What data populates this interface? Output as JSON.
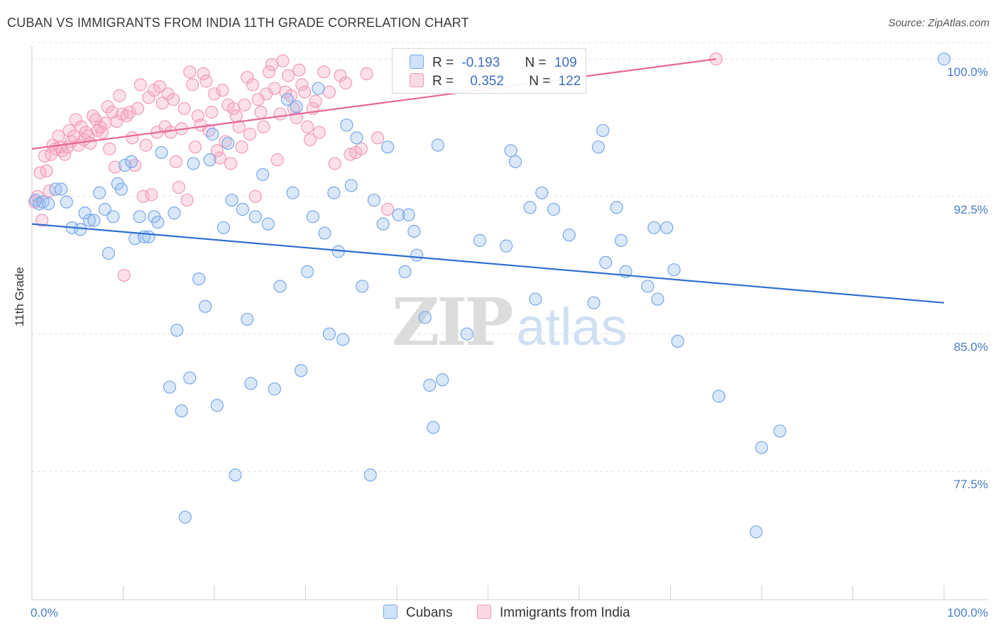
{
  "title": "CUBAN VS IMMIGRANTS FROM INDIA 11TH GRADE CORRELATION CHART",
  "source": "Source: ZipAtlas.com",
  "watermark": {
    "zip": "ZIP",
    "atlas": "atlas"
  },
  "legend": {
    "rows": [
      {
        "r_label": "R =",
        "r_value": "-0.193",
        "n_label": "N =",
        "n_value": "109",
        "color": "#7aa8e8"
      },
      {
        "r_label": "R =",
        "r_value": "0.352",
        "n_label": "N =",
        "n_value": "122",
        "color": "#f29bb7"
      }
    ],
    "bottom": [
      "Cubans",
      "Immigrants from India"
    ]
  },
  "colors": {
    "cubans_fill": "rgba(150,190,240,0.35)",
    "cubans_stroke": "#7aa8e8",
    "cubans_line": "#2f6fcf",
    "india_fill": "rgba(245,170,195,0.35)",
    "india_stroke": "#f29bb7",
    "india_line": "#e8679a",
    "tick_text": "#4a7cc8",
    "grid": "#e3e3e3"
  },
  "chart_data": {
    "type": "scatter",
    "title": "CUBAN VS IMMIGRANTS FROM INDIA 11TH GRADE CORRELATION CHART",
    "xlabel": "",
    "ylabel": "11th Grade",
    "xlim": [
      0,
      100
    ],
    "ylim": [
      70.5,
      100.9
    ],
    "x_tick_labels": [
      "0.0%",
      "100.0%"
    ],
    "y_ticks": [
      {
        "value": 100,
        "label": "100.0%"
      },
      {
        "value": 92.5,
        "label": "92.5%"
      },
      {
        "value": 85,
        "label": "85.0%"
      },
      {
        "value": 77.5,
        "label": "77.5%"
      }
    ],
    "grid": "horizontal dashed",
    "series": [
      {
        "name": "Cubans",
        "r": -0.193,
        "n": 109,
        "trend": {
          "x": [
            0,
            100
          ],
          "y": [
            91.0,
            86.7
          ]
        },
        "points": [
          [
            0.4,
            92.3
          ],
          [
            0.8,
            92.1
          ],
          [
            1.2,
            92.2
          ],
          [
            1.8,
            92.1
          ],
          [
            2.6,
            92.9
          ],
          [
            3.2,
            92.9
          ],
          [
            3.8,
            92.2
          ],
          [
            4.4,
            90.8
          ],
          [
            5.3,
            90.7
          ],
          [
            5.8,
            91.6
          ],
          [
            6.3,
            91.2
          ],
          [
            6.8,
            91.2
          ],
          [
            7.4,
            92.7
          ],
          [
            8.0,
            91.8
          ],
          [
            8.4,
            89.4
          ],
          [
            8.9,
            91.4
          ],
          [
            9.4,
            93.2
          ],
          [
            9.8,
            92.9
          ],
          [
            10.2,
            94.2
          ],
          [
            10.9,
            94.4
          ],
          [
            11.3,
            90.2
          ],
          [
            11.8,
            91.4
          ],
          [
            12.3,
            90.3
          ],
          [
            12.8,
            90.3
          ],
          [
            13.4,
            91.4
          ],
          [
            13.8,
            91.1
          ],
          [
            14.2,
            94.9
          ],
          [
            15.1,
            82.1
          ],
          [
            15.6,
            91.6
          ],
          [
            15.9,
            85.2
          ],
          [
            16.4,
            80.8
          ],
          [
            16.8,
            75.0
          ],
          [
            17.3,
            82.6
          ],
          [
            17.7,
            94.3
          ],
          [
            18.3,
            88.0
          ],
          [
            19.0,
            86.5
          ],
          [
            19.5,
            94.5
          ],
          [
            19.8,
            95.9
          ],
          [
            20.3,
            81.1
          ],
          [
            21.0,
            90.8
          ],
          [
            21.5,
            95.4
          ],
          [
            21.9,
            92.3
          ],
          [
            22.3,
            77.3
          ],
          [
            23.1,
            91.8
          ],
          [
            23.6,
            85.8
          ],
          [
            24.0,
            82.3
          ],
          [
            24.5,
            91.4
          ],
          [
            25.3,
            93.7
          ],
          [
            25.9,
            91.0
          ],
          [
            26.6,
            82.0
          ],
          [
            27.2,
            87.6
          ],
          [
            28.0,
            97.8
          ],
          [
            28.6,
            92.7
          ],
          [
            29.0,
            97.4
          ],
          [
            29.5,
            83.0
          ],
          [
            30.2,
            88.4
          ],
          [
            30.8,
            91.4
          ],
          [
            31.4,
            98.4
          ],
          [
            32.1,
            90.5
          ],
          [
            32.6,
            85.0
          ],
          [
            33.1,
            92.7
          ],
          [
            33.6,
            89.5
          ],
          [
            34.1,
            84.7
          ],
          [
            34.5,
            96.4
          ],
          [
            35.0,
            93.1
          ],
          [
            35.6,
            95.7
          ],
          [
            36.2,
            87.6
          ],
          [
            37.1,
            77.3
          ],
          [
            37.5,
            92.3
          ],
          [
            38.5,
            91.0
          ],
          [
            39.0,
            95.2
          ],
          [
            40.2,
            91.5
          ],
          [
            40.9,
            88.4
          ],
          [
            41.3,
            91.5
          ],
          [
            41.9,
            90.6
          ],
          [
            42.2,
            89.3
          ],
          [
            43.1,
            85.9
          ],
          [
            43.6,
            82.2
          ],
          [
            44.0,
            79.9
          ],
          [
            44.5,
            95.3
          ],
          [
            45.0,
            82.5
          ],
          [
            47.7,
            85.0
          ],
          [
            49.1,
            90.1
          ],
          [
            52.0,
            89.8
          ],
          [
            52.5,
            95.0
          ],
          [
            53.0,
            94.4
          ],
          [
            54.6,
            91.9
          ],
          [
            55.2,
            86.9
          ],
          [
            55.9,
            92.7
          ],
          [
            57.2,
            91.8
          ],
          [
            58.9,
            90.4
          ],
          [
            61.6,
            86.7
          ],
          [
            62.1,
            95.2
          ],
          [
            62.6,
            96.1
          ],
          [
            62.9,
            88.9
          ],
          [
            64.1,
            91.9
          ],
          [
            64.6,
            90.1
          ],
          [
            65.1,
            88.4
          ],
          [
            67.5,
            87.6
          ],
          [
            68.2,
            90.8
          ],
          [
            68.6,
            86.9
          ],
          [
            69.6,
            90.8
          ],
          [
            70.4,
            88.5
          ],
          [
            70.8,
            84.6
          ],
          [
            75.3,
            81.6
          ],
          [
            79.4,
            74.2
          ],
          [
            80.0,
            78.8
          ],
          [
            82.0,
            79.7
          ],
          [
            100.0,
            100.0
          ]
        ]
      },
      {
        "name": "Immigrants from India",
        "r": 0.352,
        "n": 122,
        "trend": {
          "x": [
            0,
            75
          ],
          "y": [
            95.1,
            100.0
          ]
        },
        "points": [
          [
            0.3,
            92.2
          ],
          [
            0.6,
            92.5
          ],
          [
            0.9,
            93.8
          ],
          [
            1.1,
            91.2
          ],
          [
            1.4,
            94.7
          ],
          [
            1.6,
            93.9
          ],
          [
            1.9,
            92.8
          ],
          [
            2.1,
            94.8
          ],
          [
            2.3,
            95.3
          ],
          [
            2.6,
            95.1
          ],
          [
            2.9,
            95.8
          ],
          [
            3.1,
            95.2
          ],
          [
            3.3,
            95.0
          ],
          [
            3.6,
            94.8
          ],
          [
            3.9,
            95.2
          ],
          [
            4.1,
            96.1
          ],
          [
            4.3,
            95.5
          ],
          [
            4.6,
            95.8
          ],
          [
            4.8,
            96.7
          ],
          [
            5.1,
            95.3
          ],
          [
            5.4,
            96.3
          ],
          [
            5.7,
            95.6
          ],
          [
            5.9,
            96.0
          ],
          [
            6.2,
            95.8
          ],
          [
            6.4,
            95.4
          ],
          [
            6.7,
            96.9
          ],
          [
            7.0,
            96.7
          ],
          [
            7.2,
            96.1
          ],
          [
            7.5,
            96.3
          ],
          [
            7.7,
            96.0
          ],
          [
            8.0,
            96.5
          ],
          [
            8.3,
            97.4
          ],
          [
            8.5,
            95.1
          ],
          [
            8.8,
            97.1
          ],
          [
            9.1,
            94.1
          ],
          [
            9.3,
            96.6
          ],
          [
            9.6,
            98.0
          ],
          [
            9.9,
            97.0
          ],
          [
            10.1,
            88.2
          ],
          [
            10.4,
            96.9
          ],
          [
            10.7,
            97.1
          ],
          [
            11.0,
            95.7
          ],
          [
            11.3,
            94.2
          ],
          [
            11.6,
            97.3
          ],
          [
            11.9,
            98.6
          ],
          [
            12.2,
            92.5
          ],
          [
            12.5,
            95.3
          ],
          [
            12.8,
            97.9
          ],
          [
            13.1,
            92.6
          ],
          [
            13.4,
            98.3
          ],
          [
            13.7,
            96.0
          ],
          [
            14.0,
            98.5
          ],
          [
            14.3,
            97.6
          ],
          [
            14.6,
            96.3
          ],
          [
            14.9,
            98.1
          ],
          [
            15.2,
            96.0
          ],
          [
            15.5,
            97.8
          ],
          [
            15.8,
            94.4
          ],
          [
            16.1,
            93.0
          ],
          [
            16.4,
            96.2
          ],
          [
            16.7,
            97.3
          ],
          [
            17.0,
            92.3
          ],
          [
            17.3,
            99.3
          ],
          [
            17.6,
            98.6
          ],
          [
            17.9,
            95.2
          ],
          [
            18.2,
            96.9
          ],
          [
            18.5,
            96.4
          ],
          [
            18.8,
            99.2
          ],
          [
            19.1,
            98.8
          ],
          [
            19.4,
            96.1
          ],
          [
            19.7,
            97.1
          ],
          [
            20.0,
            98.1
          ],
          [
            20.3,
            95.0
          ],
          [
            20.6,
            94.6
          ],
          [
            20.9,
            98.3
          ],
          [
            21.2,
            95.5
          ],
          [
            21.5,
            97.5
          ],
          [
            21.8,
            94.3
          ],
          [
            22.1,
            97.3
          ],
          [
            22.4,
            96.9
          ],
          [
            22.7,
            96.3
          ],
          [
            23.0,
            95.2
          ],
          [
            23.3,
            97.5
          ],
          [
            23.6,
            99.0
          ],
          [
            23.9,
            95.9
          ],
          [
            24.2,
            98.6
          ],
          [
            24.5,
            92.5
          ],
          [
            24.8,
            97.8
          ],
          [
            25.1,
            97.1
          ],
          [
            25.4,
            96.3
          ],
          [
            25.7,
            98.1
          ],
          [
            26.0,
            99.3
          ],
          [
            26.3,
            99.7
          ],
          [
            26.6,
            98.4
          ],
          [
            26.9,
            94.5
          ],
          [
            27.2,
            97.0
          ],
          [
            27.5,
            99.9
          ],
          [
            27.8,
            98.2
          ],
          [
            28.1,
            99.1
          ],
          [
            28.4,
            98.0
          ],
          [
            28.7,
            97.3
          ],
          [
            29.0,
            96.8
          ],
          [
            29.3,
            99.4
          ],
          [
            29.6,
            98.6
          ],
          [
            29.9,
            98.2
          ],
          [
            30.2,
            96.3
          ],
          [
            30.5,
            95.6
          ],
          [
            30.8,
            97.3
          ],
          [
            31.1,
            97.7
          ],
          [
            31.5,
            96.0
          ],
          [
            32.0,
            99.3
          ],
          [
            32.6,
            98.2
          ],
          [
            33.2,
            94.3
          ],
          [
            33.8,
            99.1
          ],
          [
            34.4,
            98.7
          ],
          [
            34.9,
            94.8
          ],
          [
            35.5,
            94.9
          ],
          [
            36.1,
            95.1
          ],
          [
            36.7,
            99.2
          ],
          [
            37.9,
            95.7
          ],
          [
            39.0,
            91.8
          ],
          [
            75.0,
            100.0
          ]
        ]
      }
    ]
  }
}
